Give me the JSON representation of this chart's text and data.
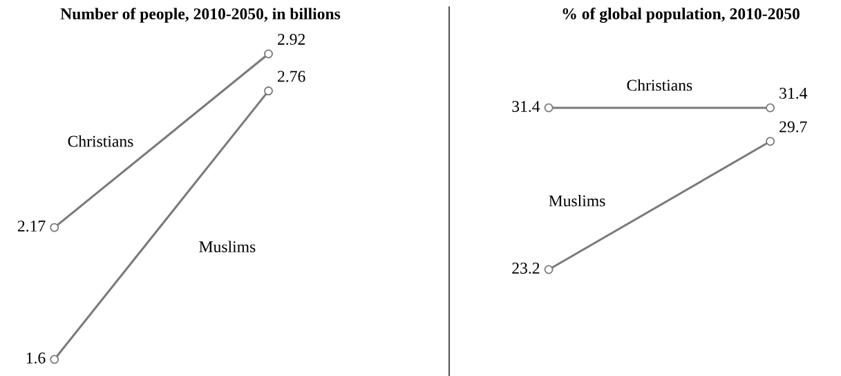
{
  "chart_data": [
    {
      "type": "line",
      "title": "Number of people, 2010-2050, in billions",
      "categories": [
        null,
        null
      ],
      "marker": "circle",
      "line_style": "solid",
      "tick_labels": false,
      "series": [
        {
          "name": "Christians",
          "color": "#7a7a7a",
          "values": [
            2.17,
            2.92
          ],
          "value_labels": [
            "2.17",
            "2.92"
          ]
        },
        {
          "name": "Muslims",
          "color": "#7a7a7a",
          "values": [
            1.6,
            2.76
          ],
          "value_labels": [
            "1.6",
            "2.76"
          ]
        }
      ]
    },
    {
      "type": "line",
      "title": "% of global population, 2010-2050",
      "categories": [
        null,
        null
      ],
      "marker": "circle",
      "line_style": "solid",
      "tick_labels": false,
      "series": [
        {
          "name": "Christians",
          "color": "#7a7a7a",
          "values": [
            31.4,
            31.4
          ],
          "value_labels": [
            "31.4",
            "31.4"
          ]
        },
        {
          "name": "Muslims",
          "color": "#7a7a7a",
          "values": [
            23.2,
            29.7
          ],
          "value_labels": [
            "23.2",
            "29.7"
          ]
        }
      ]
    }
  ]
}
